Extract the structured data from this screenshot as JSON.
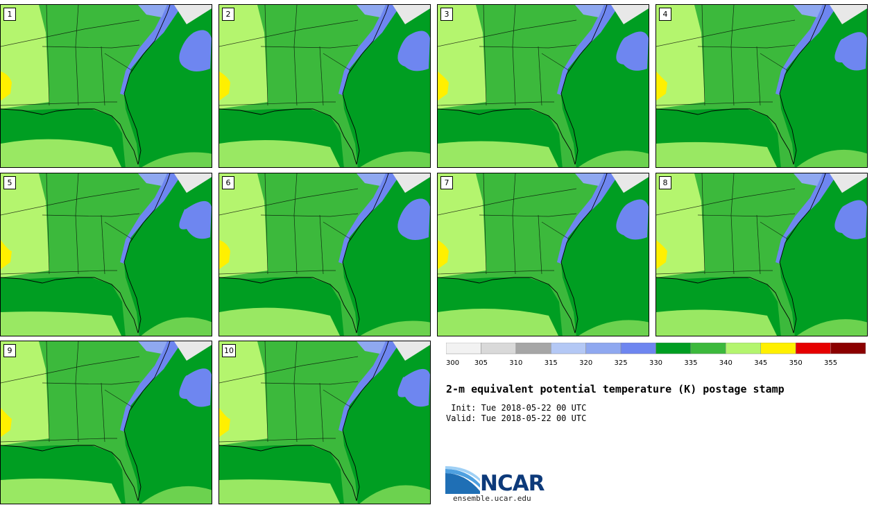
{
  "panels": [
    {
      "label": "1"
    },
    {
      "label": "2"
    },
    {
      "label": "3"
    },
    {
      "label": "4"
    },
    {
      "label": "5"
    },
    {
      "label": "6"
    },
    {
      "label": "7"
    },
    {
      "label": "8"
    },
    {
      "label": "9"
    },
    {
      "label": "10"
    }
  ],
  "legend": {
    "bins": [
      {
        "from": 300,
        "to": 305,
        "color": "#f2f2f2"
      },
      {
        "from": 305,
        "to": 310,
        "color": "#d9d9d9"
      },
      {
        "from": 310,
        "to": 315,
        "color": "#a6a6a6"
      },
      {
        "from": 315,
        "to": 320,
        "color": "#b4c8f5"
      },
      {
        "from": 320,
        "to": 325,
        "color": "#8fa8f0"
      },
      {
        "from": 325,
        "to": 330,
        "color": "#6e86f0"
      },
      {
        "from": 330,
        "to": 335,
        "color": "#009e22"
      },
      {
        "from": 335,
        "to": 340,
        "color": "#3cb93c"
      },
      {
        "from": 340,
        "to": 345,
        "color": "#b4f56e"
      },
      {
        "from": 345,
        "to": 350,
        "color": "#fff000"
      },
      {
        "from": 350,
        "to": 355,
        "color": "#e60000"
      },
      {
        "from": 355,
        "to": 360,
        "color": "#8b0000"
      }
    ],
    "tick_labels": [
      "300",
      "305",
      "310",
      "315",
      "320",
      "325",
      "330",
      "335",
      "340",
      "345",
      "350",
      "355"
    ]
  },
  "title": "2-m equivalent potential temperature (K) postage stamp",
  "init_line": " Init: Tue 2018-05-22 00 UTC",
  "valid_line": "Valid: Tue 2018-05-22 00 UTC",
  "logo": {
    "text": "NCAR",
    "url": "ensemble.ucar.edu"
  },
  "colors": {
    "land_base": "#3cb93c",
    "ocean_warm": "#009e22",
    "interior_dry": "#b4f56e",
    "cool_coastal": "#6e86f0",
    "hot_spot": "#fff000",
    "snow": "#e8e8e8"
  }
}
